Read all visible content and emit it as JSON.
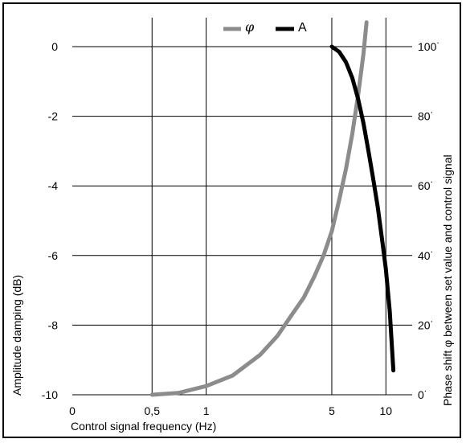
{
  "chart_data": {
    "type": "line",
    "title": "",
    "xlabel": "Control signal frequency (Hz)",
    "ylabel_left": "Amplitude damping (dB)",
    "ylabel_right": "Phase shift φ between set value and control signal",
    "x_scale": "log",
    "x_ticks": [
      {
        "label": "0",
        "value": 0.18
      },
      {
        "label": "0,5",
        "value": 0.5
      },
      {
        "label": "1",
        "value": 1
      },
      {
        "label": "5",
        "value": 5
      },
      {
        "label": "10",
        "value": 10
      }
    ],
    "x_gridlines": [
      0.5,
      1,
      5,
      10
    ],
    "xlim": [
      0.18,
      14
    ],
    "ylim_left": [
      -10,
      1
    ],
    "yticks_left": [
      "0",
      "-2",
      "-4",
      "-6",
      "-8",
      "-10"
    ],
    "ylim_right": [
      0,
      110
    ],
    "yticks_right": [
      "100˙",
      "80˙",
      "60˙",
      "40˙",
      "20˙",
      "0˙"
    ],
    "grid": true,
    "legend": {
      "placement": "top",
      "entries": [
        {
          "label": "φ",
          "color": "#8c8c8c"
        },
        {
          "label": "A",
          "color": "#000000"
        }
      ]
    },
    "series": [
      {
        "name": "φ",
        "axis": "right",
        "color": "#8c8c8c",
        "x": [
          0.5,
          0.7,
          1.0,
          1.4,
          2.0,
          2.5,
          3.0,
          3.5,
          4.0,
          4.5,
          5.0,
          5.5,
          6.0,
          6.5,
          7.0,
          7.5,
          7.8
        ],
        "y": [
          0,
          0.5,
          2.5,
          5.5,
          11.5,
          17,
          23,
          28,
          34,
          40,
          47,
          56,
          65,
          75,
          86,
          98,
          107
        ]
      },
      {
        "name": "A",
        "axis": "left",
        "color": "#000000",
        "x": [
          5.0,
          5.5,
          6.0,
          6.5,
          7.0,
          7.5,
          8.0,
          8.5,
          9.0,
          9.5,
          10.0,
          10.5,
          11.0
        ],
        "y": [
          0,
          -0.15,
          -0.45,
          -0.9,
          -1.5,
          -2.2,
          -3.0,
          -3.8,
          -4.6,
          -5.5,
          -6.4,
          -7.6,
          -9.3
        ]
      }
    ]
  }
}
